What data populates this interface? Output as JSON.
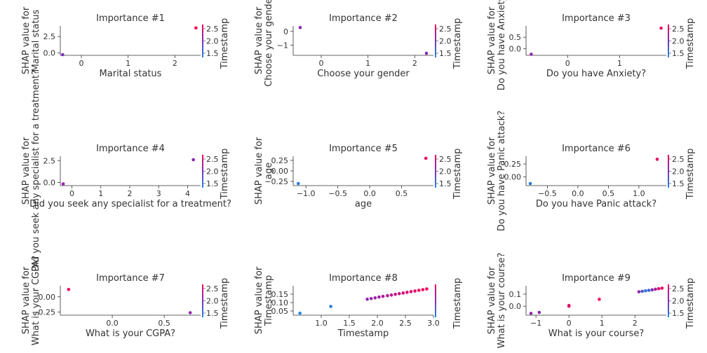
{
  "figure": {
    "colorbar_label": "Timestamp",
    "colors": {
      "low": "#1e88e5",
      "high": "#ff0052",
      "axis": "#333333",
      "text": "#333333"
    }
  },
  "chart_data": [
    {
      "type": "scatter",
      "title": "Importance #1",
      "xlabel": "Marital status",
      "ylabel": [
        "SHAP value for",
        "Marital status"
      ],
      "xlim": [
        -0.45,
        2.55
      ],
      "ylim": [
        -0.35,
        4.1
      ],
      "xticks": [
        0,
        1,
        2
      ],
      "xtick_labels": [
        "0",
        "1",
        "2"
      ],
      "yticks": [
        0,
        2.5
      ],
      "ytick_labels": [
        "0.0",
        "2.5"
      ],
      "cbar_ticks": [
        "1.5",
        "2.0",
        "2.5"
      ],
      "points": [
        {
          "x": -0.4,
          "y": -0.25,
          "c": 0.5
        },
        {
          "x": 2.45,
          "y": 3.8,
          "c": 1.0
        }
      ]
    },
    {
      "type": "scatter",
      "title": "Importance #2",
      "xlabel": "Choose your gender",
      "ylabel": [
        "SHAP value for",
        "Choose your gender"
      ],
      "xlim": [
        -0.6,
        2.4
      ],
      "ylim": [
        -1.75,
        0.4
      ],
      "xticks": [
        0,
        1,
        2
      ],
      "xtick_labels": [
        "0",
        "1",
        "2"
      ],
      "yticks": [
        -1,
        0
      ],
      "ytick_labels": [
        "−1",
        "0"
      ],
      "cbar_ticks": [
        "1.5",
        "2.0",
        "2.5"
      ],
      "points": [
        {
          "x": -0.45,
          "y": 0.28,
          "c": 0.55
        },
        {
          "x": 2.25,
          "y": -1.6,
          "c": 0.55
        }
      ]
    },
    {
      "type": "scatter",
      "title": "Importance #3",
      "xlabel": "Do you have Anxiety?",
      "ylabel": [
        "SHAP value for",
        "Do you have Anxiety?"
      ],
      "xlim": [
        -0.8,
        1.9
      ],
      "ylim": [
        -0.3,
        1.0
      ],
      "xticks": [
        0,
        1
      ],
      "xtick_labels": [
        "0",
        "1"
      ],
      "yticks": [
        0,
        0.5
      ],
      "ytick_labels": [
        "0.0",
        "0.5"
      ],
      "cbar_ticks": [
        "1.5",
        "2.0",
        "2.5"
      ],
      "points": [
        {
          "x": -0.7,
          "y": -0.25,
          "c": 0.6
        },
        {
          "x": 1.8,
          "y": 0.9,
          "c": 0.95
        }
      ]
    },
    {
      "type": "scatter",
      "title": "Importance #4",
      "xlabel": "Did you seek any specialist for a treatment?",
      "ylabel": [
        "SHAP value for",
        "Did you seek any specialist for a treatment?"
      ],
      "xlim": [
        -0.4,
        4.45
      ],
      "ylim": [
        -0.35,
        3.0
      ],
      "xticks": [
        0,
        1,
        2,
        3,
        4
      ],
      "xtick_labels": [
        "0",
        "1",
        "2",
        "3",
        "4"
      ],
      "yticks": [
        0,
        2.5
      ],
      "ytick_labels": [
        "0.0",
        "2.5"
      ],
      "cbar_ticks": [
        "1.5",
        "2.0",
        "2.5"
      ],
      "points": [
        {
          "x": -0.3,
          "y": -0.15,
          "c": 0.6
        },
        {
          "x": 4.2,
          "y": 2.6,
          "c": 0.55
        }
      ]
    },
    {
      "type": "scatter",
      "title": "Importance #5",
      "xlabel": "age",
      "ylabel": [
        "SHAP value for",
        "age"
      ],
      "xlim": [
        -1.2,
        1.0
      ],
      "ylim": [
        -0.35,
        0.35
      ],
      "xticks": [
        -1.0,
        -0.5,
        0.0,
        0.5
      ],
      "xtick_labels": [
        "−1.0",
        "−0.5",
        "0.0",
        "0.5"
      ],
      "yticks": [
        -0.25,
        0,
        0.25
      ],
      "ytick_labels": [
        "−0.25",
        "0.00",
        "0.25"
      ],
      "cbar_ticks": [
        "1.5",
        "2.0",
        "2.5"
      ],
      "points": [
        {
          "x": -1.12,
          "y": -0.3,
          "c": 0.05
        },
        {
          "x": 0.88,
          "y": 0.3,
          "c": 0.95
        }
      ]
    },
    {
      "type": "scatter",
      "title": "Importance #6",
      "xlabel": "Do you have Panic attack?",
      "ylabel": [
        "SHAP value for",
        "Do you have Panic attack?"
      ],
      "xlim": [
        -0.85,
        1.45
      ],
      "ylim": [
        -0.17,
        0.4
      ],
      "xticks": [
        -0.5,
        0.0,
        0.5,
        1.0
      ],
      "xtick_labels": [
        "−0.5",
        "0.0",
        "0.5",
        "1.0"
      ],
      "yticks": [
        0,
        0.25
      ],
      "ytick_labels": [
        "0.00",
        "0.25"
      ],
      "cbar_ticks": [
        "1.5",
        "2.0",
        "2.5"
      ],
      "points": [
        {
          "x": -0.78,
          "y": -0.13,
          "c": 0.05
        },
        {
          "x": 1.3,
          "y": 0.34,
          "c": 0.9
        }
      ]
    },
    {
      "type": "scatter",
      "title": "Importance #7",
      "xlabel": "What is your CGPA?",
      "ylabel": [
        "SHAP value for",
        "What is your CGPA?"
      ],
      "xlim": [
        -0.5,
        0.85
      ],
      "ylim": [
        -0.3,
        0.18
      ],
      "xticks": [
        0.0,
        0.5
      ],
      "xtick_labels": [
        "0.0",
        "0.5"
      ],
      "yticks": [
        -0.25,
        0.0
      ],
      "ytick_labels": [
        "−0.25",
        "0.00"
      ],
      "cbar_ticks": [
        "1.5",
        "2.0",
        "2.5"
      ],
      "points": [
        {
          "x": -0.42,
          "y": 0.12,
          "c": 0.95
        },
        {
          "x": 0.75,
          "y": -0.26,
          "c": 0.6
        }
      ]
    },
    {
      "type": "scatter",
      "title": "Importance #8",
      "xlabel": "Timestamp",
      "ylabel": [
        "SHAP value for",
        "Timestamp"
      ],
      "xlim": [
        0.5,
        3.0
      ],
      "ylim": [
        0.025,
        0.2
      ],
      "xticks": [
        1.0,
        1.5,
        2.0,
        2.5,
        3.0
      ],
      "xtick_labels": [
        "1.0",
        "1.5",
        "2.0",
        "2.5",
        "3.0"
      ],
      "yticks": [
        0.05,
        0.1,
        0.15
      ],
      "ytick_labels": [
        "0.05",
        "0.10",
        "0.15"
      ],
      "cbar_ticks": [],
      "points": [
        {
          "x": 0.62,
          "y": 0.037,
          "c": 0.0
        },
        {
          "x": 1.17,
          "y": 0.077,
          "c": 0.05
        },
        {
          "x": 1.82,
          "y": 0.12,
          "c": 0.55
        },
        {
          "x": 1.89,
          "y": 0.124,
          "c": 0.6
        },
        {
          "x": 1.96,
          "y": 0.128,
          "c": 0.62
        },
        {
          "x": 2.03,
          "y": 0.133,
          "c": 0.65
        },
        {
          "x": 2.1,
          "y": 0.137,
          "c": 0.68
        },
        {
          "x": 2.18,
          "y": 0.141,
          "c": 0.72
        },
        {
          "x": 2.25,
          "y": 0.145,
          "c": 0.75
        },
        {
          "x": 2.32,
          "y": 0.149,
          "c": 0.78
        },
        {
          "x": 2.39,
          "y": 0.153,
          "c": 0.8
        },
        {
          "x": 2.46,
          "y": 0.157,
          "c": 0.83
        },
        {
          "x": 2.53,
          "y": 0.161,
          "c": 0.86
        },
        {
          "x": 2.6,
          "y": 0.165,
          "c": 0.88
        },
        {
          "x": 2.67,
          "y": 0.169,
          "c": 0.9
        },
        {
          "x": 2.74,
          "y": 0.173,
          "c": 0.92
        },
        {
          "x": 2.81,
          "y": 0.177,
          "c": 0.95
        },
        {
          "x": 2.88,
          "y": 0.181,
          "c": 0.98
        }
      ]
    },
    {
      "type": "scatter",
      "title": "Importance #9",
      "xlabel": "What is your course?",
      "ylabel": [
        "SHAP value for",
        "What is your course?"
      ],
      "xlim": [
        -1.3,
        2.95
      ],
      "ylim": [
        -0.075,
        0.17
      ],
      "xticks": [
        -1,
        0,
        1,
        2
      ],
      "xtick_labels": [
        "−1",
        "0",
        "1",
        "2"
      ],
      "yticks": [
        0.0,
        0.1
      ],
      "ytick_labels": [
        "0.0",
        "0.1"
      ],
      "cbar_ticks": [
        "1.5",
        "2.0",
        "2.5"
      ],
      "points": [
        {
          "x": -1.15,
          "y": -0.06,
          "c": 0.6
        },
        {
          "x": -0.9,
          "y": -0.052,
          "c": 0.55
        },
        {
          "x": 0.0,
          "y": 0.0,
          "c": 0.95
        },
        {
          "x": 0.0,
          "y": 0.006,
          "c": 0.9
        },
        {
          "x": 0.92,
          "y": 0.057,
          "c": 0.95
        },
        {
          "x": 2.12,
          "y": 0.12,
          "c": 0.6
        },
        {
          "x": 2.22,
          "y": 0.124,
          "c": 0.3
        },
        {
          "x": 2.32,
          "y": 0.128,
          "c": 0.1
        },
        {
          "x": 2.42,
          "y": 0.132,
          "c": 0.2
        },
        {
          "x": 2.52,
          "y": 0.136,
          "c": 0.5
        },
        {
          "x": 2.62,
          "y": 0.141,
          "c": 0.7
        },
        {
          "x": 2.72,
          "y": 0.146,
          "c": 0.85
        },
        {
          "x": 2.82,
          "y": 0.15,
          "c": 0.95
        }
      ]
    }
  ]
}
